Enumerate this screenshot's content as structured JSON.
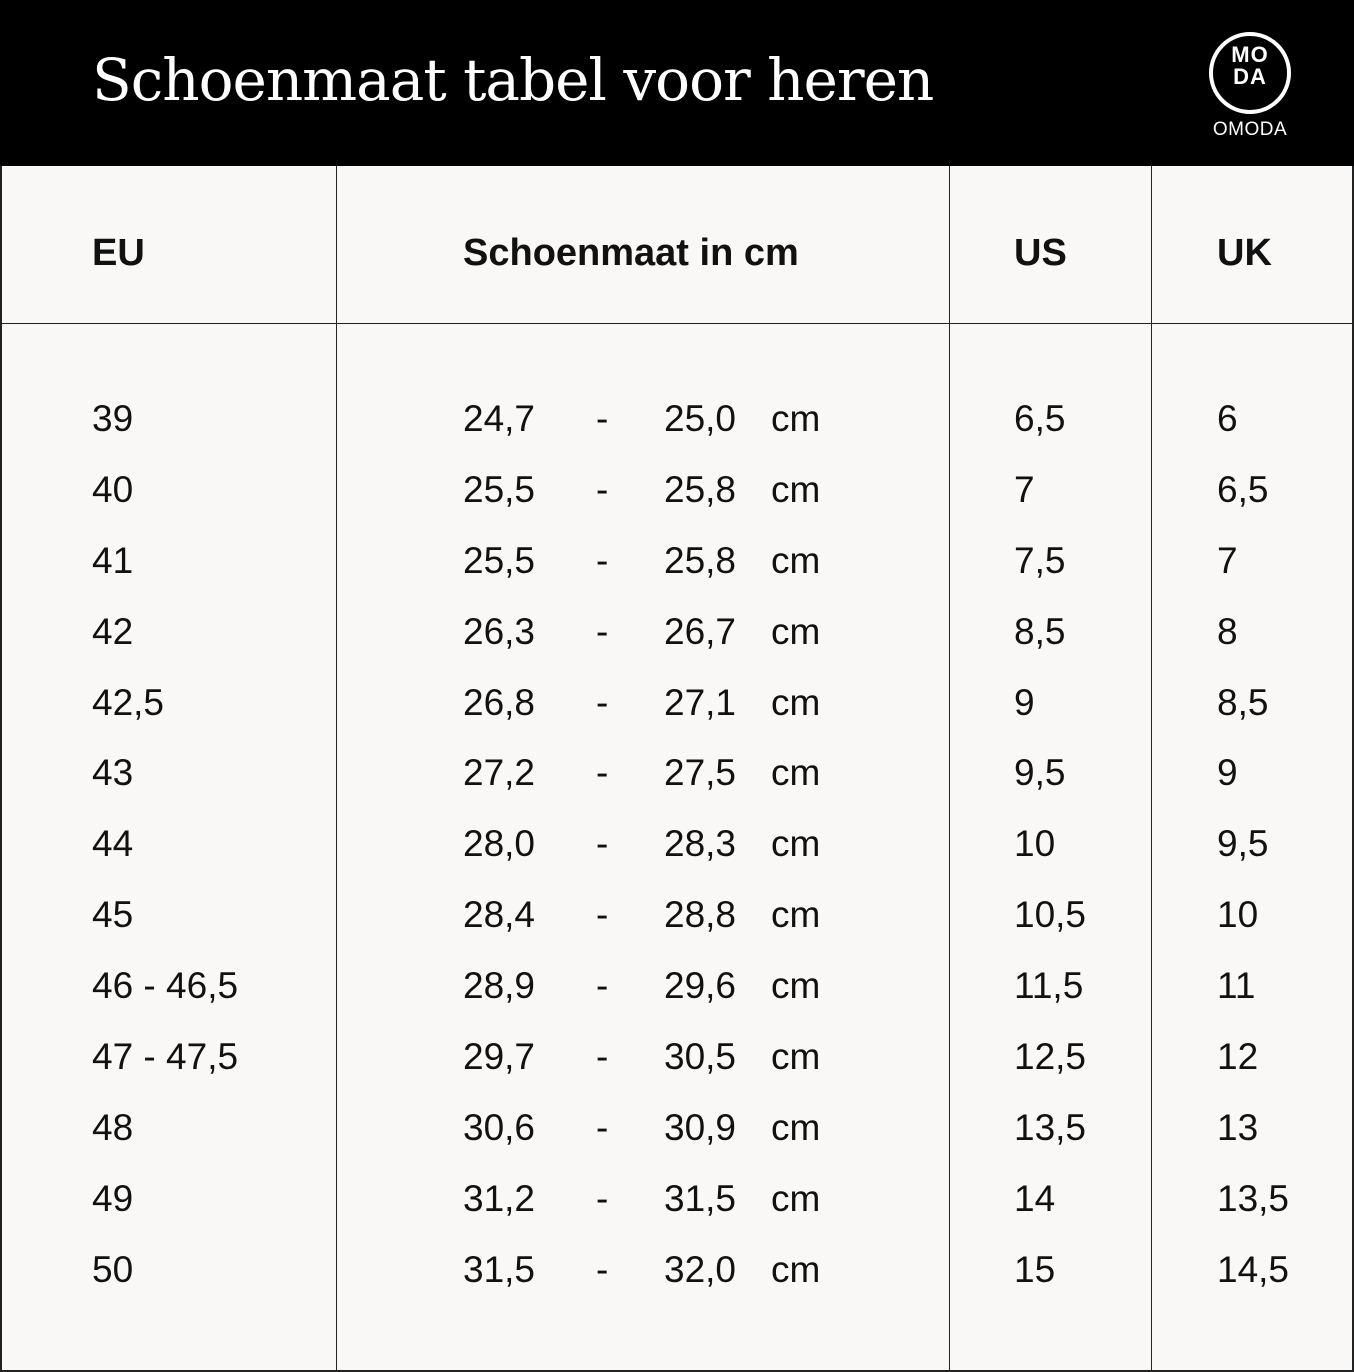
{
  "header": {
    "title": "Schoenmaat tabel voor heren",
    "logo": {
      "mark_top": "MO",
      "mark_bottom": "DA",
      "word": "OMODA"
    }
  },
  "table": {
    "columns": [
      "EU",
      "Schoenmaat in cm",
      "US",
      "UK"
    ],
    "rows": [
      {
        "eu": "39",
        "cm_from": "24,7",
        "dash": "-",
        "cm_to": "25,0",
        "unit": "cm",
        "us": "6,5",
        "uk": "6"
      },
      {
        "eu": "40",
        "cm_from": "25,5",
        "dash": "-",
        "cm_to": "25,8",
        "unit": "cm",
        "us": "7",
        "uk": "6,5"
      },
      {
        "eu": "41",
        "cm_from": "25,5",
        "dash": "-",
        "cm_to": "25,8",
        "unit": "cm",
        "us": "7,5",
        "uk": "7"
      },
      {
        "eu": "42",
        "cm_from": "26,3",
        "dash": "-",
        "cm_to": "26,7",
        "unit": "cm",
        "us": "8,5",
        "uk": "8"
      },
      {
        "eu": "42,5",
        "cm_from": "26,8",
        "dash": "-",
        "cm_to": "27,1",
        "unit": "cm",
        "us": "9",
        "uk": "8,5"
      },
      {
        "eu": "43",
        "cm_from": "27,2",
        "dash": "-",
        "cm_to": "27,5",
        "unit": "cm",
        "us": "9,5",
        "uk": "9"
      },
      {
        "eu": "44",
        "cm_from": "28,0",
        "dash": "-",
        "cm_to": "28,3",
        "unit": "cm",
        "us": "10",
        "uk": "9,5"
      },
      {
        "eu": "45",
        "cm_from": "28,4",
        "dash": "-",
        "cm_to": "28,8",
        "unit": "cm",
        "us": "10,5",
        "uk": "10"
      },
      {
        "eu": "46 - 46,5",
        "cm_from": "28,9",
        "dash": "-",
        "cm_to": "29,6",
        "unit": "cm",
        "us": "11,5",
        "uk": "11"
      },
      {
        "eu": "47 - 47,5",
        "cm_from": "29,7",
        "dash": "-",
        "cm_to": "30,5",
        "unit": "cm",
        "us": "12,5",
        "uk": "12"
      },
      {
        "eu": "48",
        "cm_from": "30,6",
        "dash": "-",
        "cm_to": "30,9",
        "unit": "cm",
        "us": "13,5",
        "uk": "13"
      },
      {
        "eu": "49",
        "cm_from": "31,2",
        "dash": "-",
        "cm_to": "31,5",
        "unit": "cm",
        "us": "14",
        "uk": "13,5"
      },
      {
        "eu": "50",
        "cm_from": "31,5",
        "dash": "-",
        "cm_to": "32,0",
        "unit": "cm",
        "us": "15",
        "uk": "14,5"
      }
    ]
  },
  "colors": {
    "header_bg": "#000000",
    "page_bg": "#f9f8f6",
    "text": "#111111",
    "lines": "#222222"
  }
}
